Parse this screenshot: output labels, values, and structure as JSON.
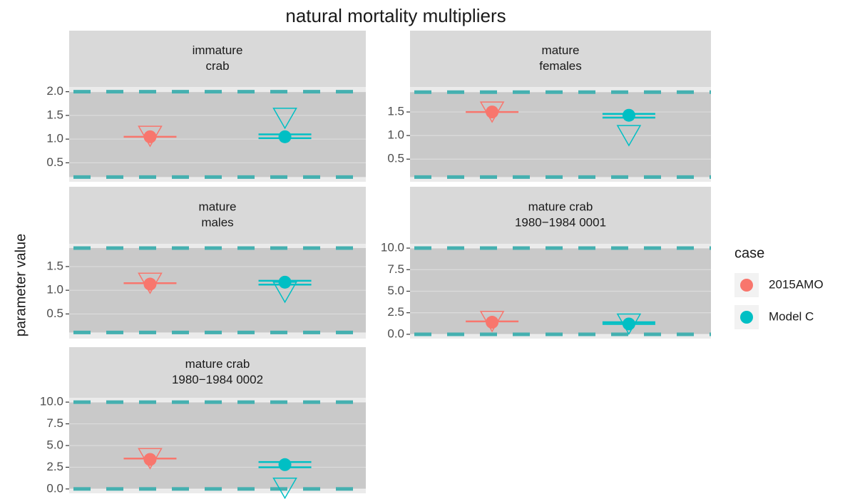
{
  "chart_data": {
    "type": "facet-point",
    "title": "natural mortality multipliers",
    "ylabel": "parameter value",
    "legend_title": "case",
    "bounds_color": "#45b0b0",
    "series": [
      {
        "name": "2015AMO",
        "color": "#f8766d"
      },
      {
        "name": "Model C",
        "color": "#00bfc4"
      }
    ],
    "facets": [
      {
        "label": [
          "immature",
          "crab"
        ],
        "ylim": [
          0.1,
          2.1
        ],
        "yticks": [
          {
            "value": 2,
            "label": "2.0"
          },
          1.5,
          {
            "value": 1,
            "label": "1.0"
          },
          0.5
        ],
        "bounds": [
          0.2,
          2
        ],
        "points": [
          1.05,
          1.05
        ],
        "triangles": [
          1.06,
          1.44
        ],
        "bars": [
          [
            1.05
          ],
          [
            1.1,
            1.02
          ]
        ]
      },
      {
        "label": [
          "mature",
          "females"
        ],
        "ylim": [
          0.02,
          2.03
        ],
        "yticks": [
          1.5,
          {
            "value": 1,
            "label": "1.0"
          },
          0.5
        ],
        "bounds": [
          0.12,
          1.92
        ],
        "points": [
          1.5,
          1.43
        ],
        "triangles": [
          1.5,
          1.0
        ],
        "bars": [
          [
            1.5
          ],
          [
            1.46,
            1.38
          ]
        ]
      },
      {
        "label": [
          "mature",
          "males"
        ],
        "ylim": [
          -0.02,
          1.98
        ],
        "yticks": [
          1.5,
          {
            "value": 1,
            "label": "1.0"
          },
          0.5
        ],
        "bounds": [
          0.11,
          1.89
        ],
        "points": [
          1.13,
          1.17
        ],
        "triangles": [
          1.15,
          0.96
        ],
        "bars": [
          [
            1.15
          ],
          [
            1.2,
            1.12
          ]
        ]
      },
      {
        "label": [
          "mature crab",
          "1980−1984 0001"
        ],
        "ylim": [
          -0.5,
          10.5
        ],
        "yticks": [
          {
            "value": 10,
            "label": "10.0"
          },
          7.5,
          {
            "value": 5,
            "label": "5.0"
          },
          2.5,
          {
            "value": 0,
            "label": "0.0"
          }
        ],
        "bounds": [
          0,
          10
        ],
        "points": [
          1.4,
          1.2
        ],
        "triangles": [
          1.5,
          1.2
        ],
        "bars": [
          [
            1.5
          ],
          [
            1.4,
            1.2
          ]
        ]
      },
      {
        "label": [
          "mature crab",
          "1980−1984 0002"
        ],
        "ylim": [
          -0.5,
          10.5
        ],
        "yticks": [
          {
            "value": 10,
            "label": "10.0"
          },
          7.5,
          {
            "value": 5,
            "label": "5.0"
          },
          2.5,
          {
            "value": 0,
            "label": "0.0"
          }
        ],
        "bounds": [
          0,
          10
        ],
        "points": [
          3.4,
          2.8
        ],
        "triangles": [
          3.5,
          0.1
        ],
        "bars": [
          [
            3.5
          ],
          [
            3.1,
            2.5
          ]
        ]
      }
    ]
  }
}
